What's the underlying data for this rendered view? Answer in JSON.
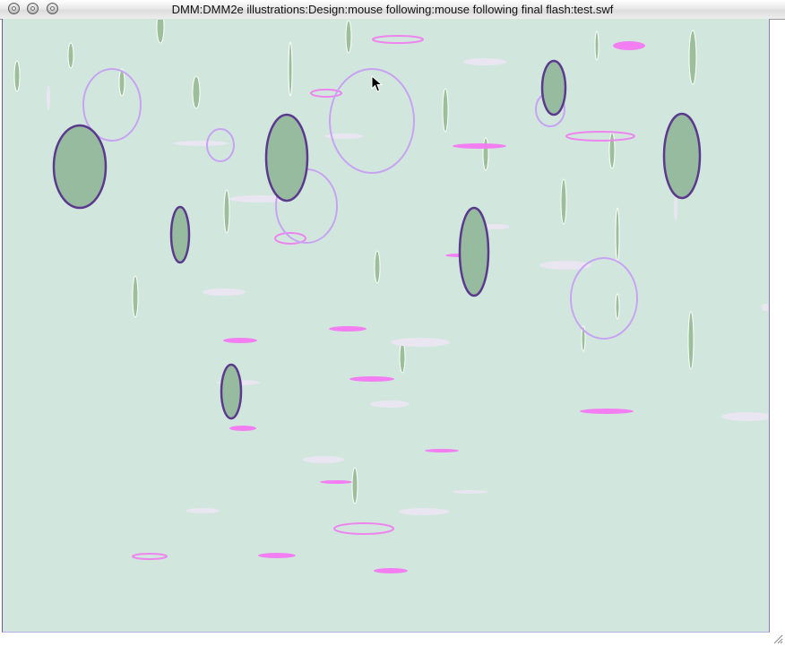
{
  "window": {
    "title": "DMM:DMM2e illustrations:Design:mouse following:mouse following final flash:test.swf"
  },
  "colors": {
    "stage_bg": "#d1e7de",
    "filled_ellipse_fill": "#97bb9f",
    "filled_ellipse_stroke": "#5b3a8d",
    "ring_stroke": "#c8a3f2",
    "pink_ring_stroke": "#ee84ee",
    "pink_dash": "#f27ef2",
    "white_dash": "#e9e6f1",
    "thin_green": "#9cbf9a"
  },
  "icons": {
    "window_buttons": [
      "close-icon",
      "minimize-icon",
      "zoom-icon"
    ],
    "cursor": "arrow-cursor-icon",
    "resize": "resize-grip-icon"
  }
}
